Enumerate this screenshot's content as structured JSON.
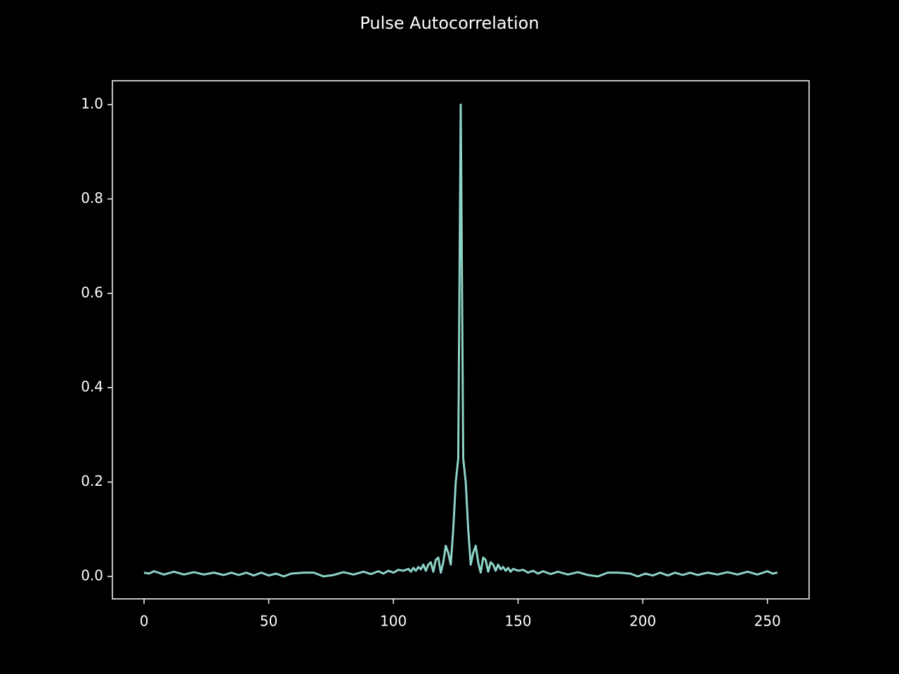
{
  "chart_data": {
    "type": "line",
    "title": "Pulse Autocorrelation",
    "x": [
      0,
      2,
      4,
      8,
      12,
      16,
      20,
      24,
      28,
      32,
      35,
      38,
      41,
      44,
      47,
      50,
      53,
      56,
      59,
      64,
      68,
      72,
      76,
      80,
      84,
      88,
      91,
      94,
      96,
      98,
      100,
      102,
      104,
      106,
      107,
      108,
      109,
      110,
      111,
      112,
      113,
      114,
      115,
      116,
      117,
      118,
      119,
      120,
      121,
      122,
      123,
      124,
      125,
      126,
      127,
      128,
      129,
      130,
      131,
      132,
      133,
      134,
      135,
      136,
      137,
      138,
      139,
      140,
      141,
      142,
      143,
      144,
      145,
      146,
      147,
      148,
      150,
      152,
      154,
      156,
      158,
      160,
      163,
      166,
      170,
      174,
      178,
      182,
      186,
      190,
      195,
      198,
      201,
      204,
      207,
      210,
      213,
      216,
      219,
      222,
      226,
      230,
      234,
      238,
      242,
      246,
      250,
      252,
      254
    ],
    "series": [
      {
        "color": "#8dd3c7",
        "values": [
          0.008,
          0.006,
          0.011,
          0.004,
          0.01,
          0.004,
          0.009,
          0.004,
          0.008,
          0.003,
          0.008,
          0.003,
          0.008,
          0.002,
          0.008,
          0.002,
          0.006,
          0.0,
          0.006,
          0.008,
          0.008,
          0.0,
          0.003,
          0.009,
          0.004,
          0.01,
          0.005,
          0.011,
          0.006,
          0.012,
          0.008,
          0.014,
          0.012,
          0.016,
          0.01,
          0.018,
          0.012,
          0.02,
          0.015,
          0.025,
          0.012,
          0.025,
          0.03,
          0.01,
          0.035,
          0.04,
          0.008,
          0.03,
          0.065,
          0.05,
          0.025,
          0.1,
          0.2,
          0.25,
          1.0,
          0.25,
          0.2,
          0.1,
          0.025,
          0.05,
          0.065,
          0.03,
          0.008,
          0.04,
          0.035,
          0.01,
          0.03,
          0.025,
          0.012,
          0.025,
          0.015,
          0.02,
          0.012,
          0.018,
          0.01,
          0.016,
          0.012,
          0.014,
          0.008,
          0.012,
          0.006,
          0.011,
          0.005,
          0.01,
          0.004,
          0.009,
          0.003,
          0.0,
          0.008,
          0.008,
          0.006,
          0.0,
          0.006,
          0.002,
          0.008,
          0.002,
          0.008,
          0.003,
          0.008,
          0.003,
          0.008,
          0.004,
          0.009,
          0.004,
          0.01,
          0.004,
          0.011,
          0.006,
          0.008
        ]
      }
    ],
    "xlim": [
      -12.7,
      266.7
    ],
    "ylim": [
      -0.0476,
      1.0506
    ],
    "xticks": [
      0,
      50,
      100,
      150,
      200,
      250
    ],
    "yticks": [
      {
        "value": 0,
        "label": "0.0"
      },
      0.2,
      0.4,
      0.6,
      0.8,
      {
        "value": 1,
        "label": "1.0"
      }
    ]
  }
}
